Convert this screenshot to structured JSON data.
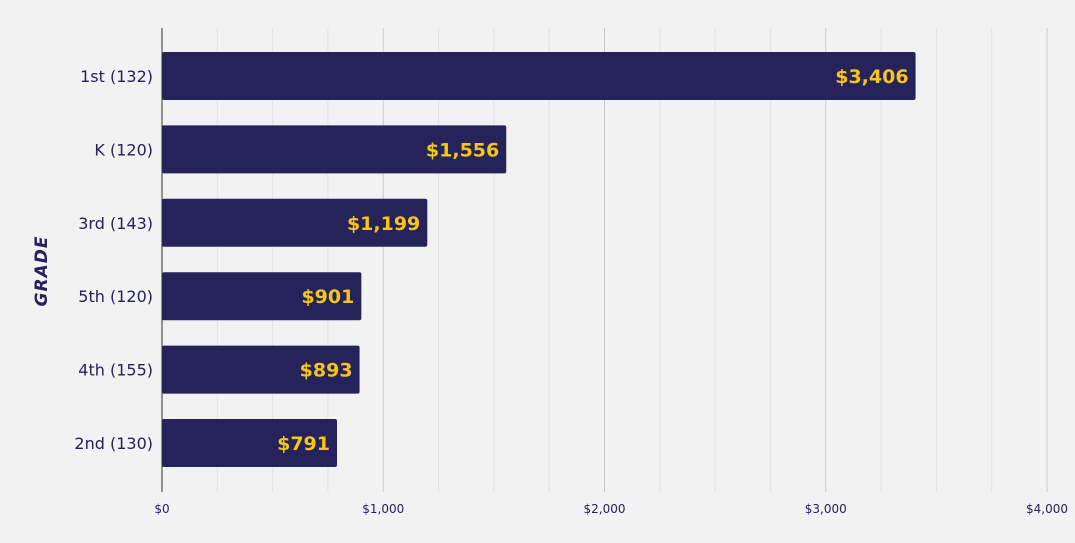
{
  "chart_data": {
    "type": "bar",
    "orientation": "horizontal",
    "title": "",
    "xlabel": "",
    "ylabel": "GRADE",
    "categories": [
      "1st (132)",
      "K (120)",
      "3rd (143)",
      "5th (120)",
      "4th (155)",
      "2nd (130)"
    ],
    "values": [
      3406,
      1556,
      1199,
      901,
      893,
      791
    ],
    "value_labels": [
      "$3,406",
      "$1,556",
      "$1,199",
      "$901",
      "$893",
      "$791"
    ],
    "xlim": [
      0,
      4000
    ],
    "x_ticks": [
      0,
      1000,
      2000,
      3000,
      4000
    ],
    "x_tick_labels": [
      "$0",
      "$1,000",
      "$2,000",
      "$3,000",
      "$4,000"
    ],
    "grid": true,
    "legend": "none",
    "colors": {
      "bar": "#25235a",
      "value_label": "#f5c518",
      "background": "#f2f2f2",
      "grid_major": "#c9c9c9",
      "grid_minor": "#e2e2e2",
      "text": "#24225a"
    }
  }
}
